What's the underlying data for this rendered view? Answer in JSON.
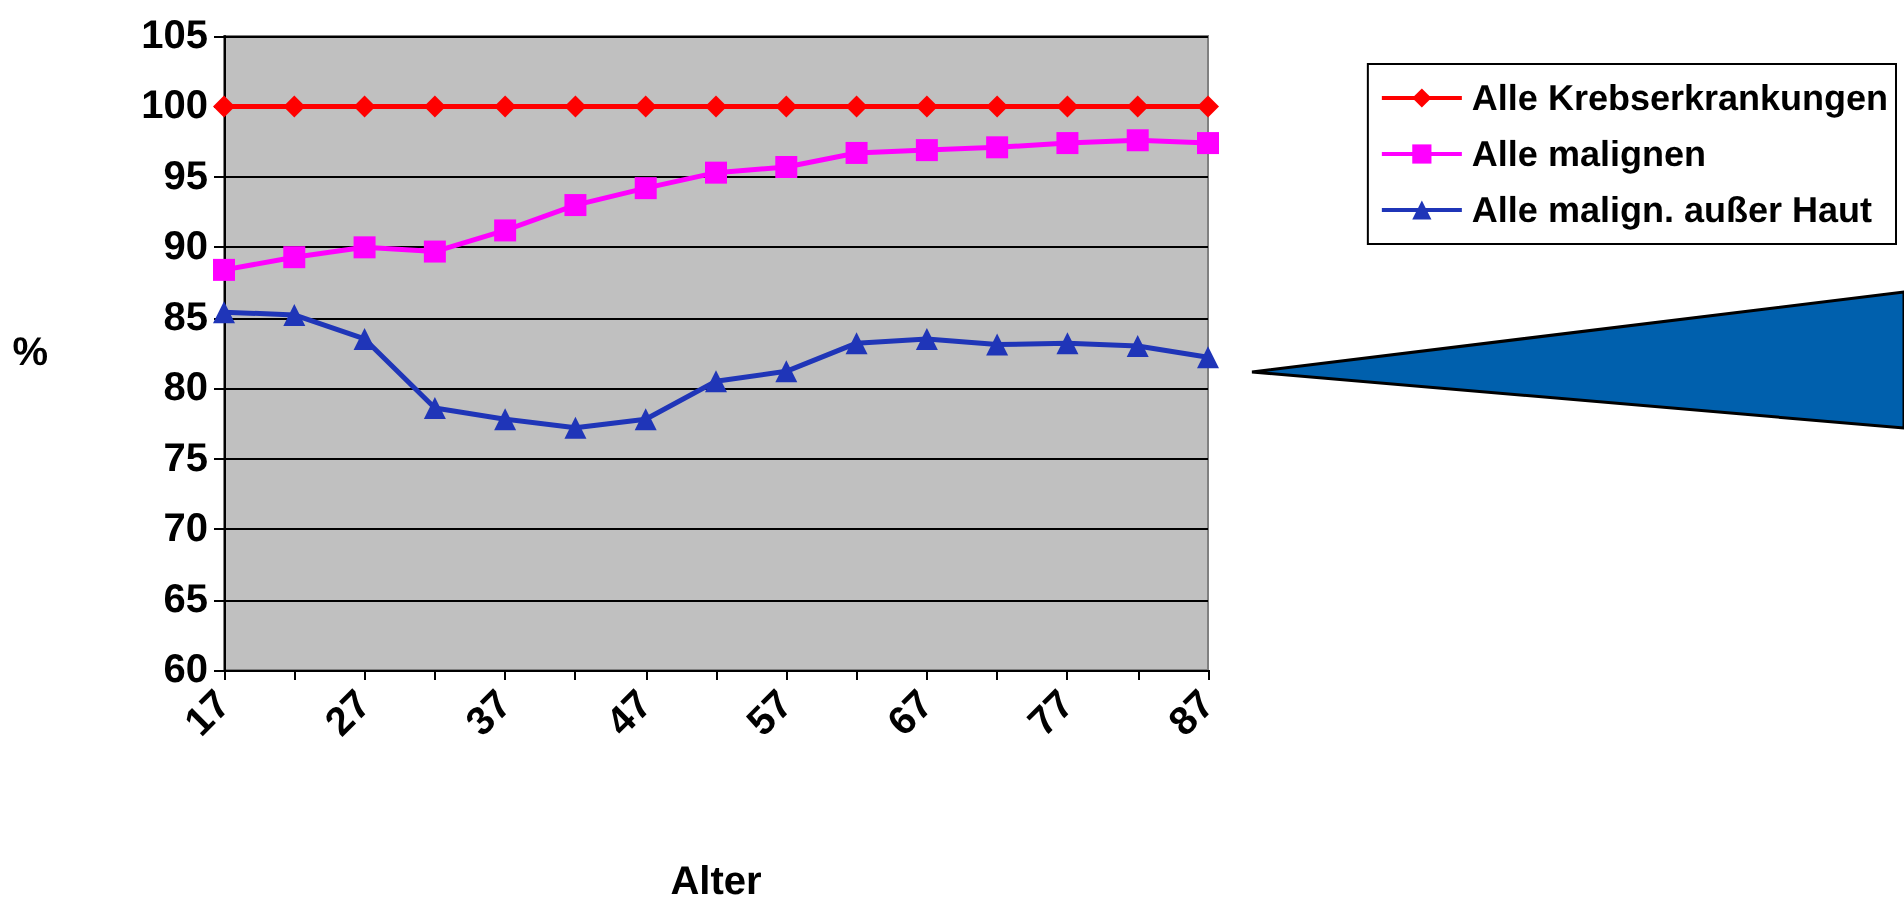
{
  "chart_data": {
    "type": "line",
    "xlabel": "Alter",
    "ylabel": "%",
    "categories": [
      "17",
      null,
      "27",
      null,
      "37",
      null,
      "47",
      null,
      "57",
      null,
      "67",
      null,
      "77",
      null,
      "87"
    ],
    "series": [
      {
        "name": "Alle Krebserkrankungen",
        "color": "#ff0000",
        "marker": "diamond",
        "values": [
          100,
          100,
          100,
          100,
          100,
          100,
          100,
          100,
          100,
          100,
          100,
          100,
          100,
          100,
          100
        ]
      },
      {
        "name": "Alle malignen",
        "color": "#ff00ff",
        "marker": "square",
        "values": [
          88.4,
          89.3,
          90.0,
          89.7,
          91.2,
          93.0,
          94.2,
          95.3,
          95.7,
          96.7,
          96.9,
          97.1,
          97.4,
          97.6,
          97.4
        ]
      },
      {
        "name": "Alle malign. außer Haut",
        "color": "#1f35b8",
        "marker": "triangle",
        "values": [
          85.4,
          85.2,
          83.5,
          78.6,
          77.8,
          77.2,
          77.8,
          80.5,
          81.2,
          83.2,
          83.5,
          83.1,
          83.2,
          83.0,
          82.2
        ]
      }
    ],
    "ylim": [
      60,
      105
    ],
    "yticks": [
      60,
      65,
      70,
      75,
      80,
      85,
      90,
      95,
      100,
      105
    ],
    "grid": "y",
    "legend": "top right"
  }
}
